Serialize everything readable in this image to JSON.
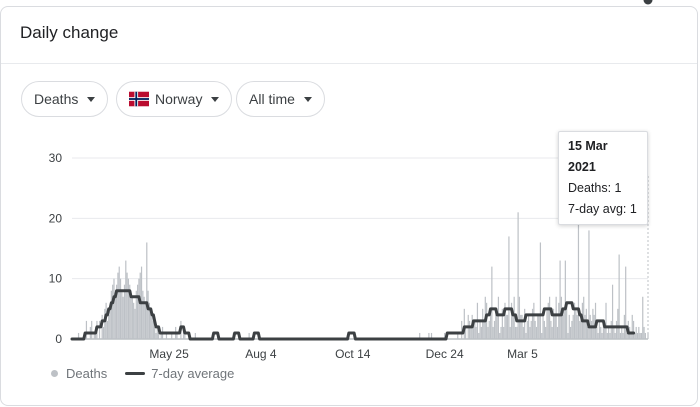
{
  "card": {
    "title": "Daily change"
  },
  "filters": {
    "metric": "Deaths",
    "region": "Norway",
    "range": "All time"
  },
  "flag_colors": {
    "red": "#ba0c2f",
    "white": "#ffffff",
    "blue": "#00205b"
  },
  "tooltip": {
    "date": "15 Mar 2021",
    "deaths_label": "Deaths: 1",
    "avg_label": "7-day avg: 1"
  },
  "legend": {
    "bars": "Deaths",
    "line": "7-day average"
  },
  "colors": {
    "bars": "#bdc1c6",
    "line": "#3c4043",
    "grid": "#e8eaed",
    "marker": "#3c4043"
  },
  "chart_data": {
    "type": "bar",
    "title": "",
    "xlabel": "",
    "ylabel": "",
    "ylim": [
      0,
      30
    ],
    "yticks": [
      0,
      10,
      20,
      30
    ],
    "xticks": [
      "May 25",
      "Aug 4",
      "Oct 14",
      "Dec 24",
      "Mar 5"
    ],
    "grid": true,
    "legend_position": "bottom-left",
    "start_date": "2020-03-12",
    "end_date": "2021-03-15",
    "series": [
      {
        "name": "Deaths",
        "kind": "bar",
        "values": [
          0,
          0,
          0,
          0,
          0,
          1,
          0,
          0,
          0,
          0,
          1,
          3,
          0,
          0,
          2,
          3,
          0,
          1,
          2,
          3,
          0,
          3,
          0,
          4,
          2,
          5,
          6,
          3,
          4,
          5,
          8,
          9,
          10,
          7,
          9,
          11,
          12,
          10,
          8,
          7,
          9,
          13,
          11,
          10,
          9,
          8,
          7,
          6,
          5,
          8,
          9,
          10,
          11,
          12,
          8,
          7,
          6,
          16,
          8,
          6,
          5,
          4,
          3,
          2,
          1,
          2,
          1,
          0,
          1,
          2,
          0,
          0,
          1,
          0,
          0,
          0,
          1,
          0,
          0,
          2,
          1,
          0,
          0,
          3,
          0,
          2,
          1,
          0,
          0,
          0,
          0,
          0,
          0,
          0,
          1,
          0,
          0,
          0,
          0,
          0,
          0,
          0,
          0,
          0,
          0,
          0,
          0,
          0,
          0,
          0,
          0,
          1,
          0,
          0,
          0,
          0,
          0,
          0,
          0,
          0,
          0,
          0,
          0,
          1,
          0,
          0,
          0,
          0,
          0,
          0,
          0,
          0,
          0,
          0,
          0,
          1,
          0,
          0,
          0,
          0,
          0,
          0,
          0,
          0,
          0,
          0,
          0,
          0,
          0,
          0,
          0,
          0,
          0,
          0,
          0,
          0,
          0,
          0,
          0,
          0,
          0,
          0,
          0,
          0,
          0,
          0,
          0,
          0,
          0,
          0,
          0,
          0,
          0,
          0,
          0,
          0,
          0,
          0,
          0,
          0,
          0,
          0,
          0,
          0,
          0,
          0,
          0,
          0,
          0,
          0,
          0,
          0,
          0,
          0,
          0,
          0,
          0,
          0,
          0,
          0,
          0,
          0,
          0,
          0,
          0,
          0,
          0,
          0,
          0,
          0,
          0,
          0,
          0,
          0,
          0,
          1,
          0,
          0,
          0,
          0,
          0,
          0,
          0,
          0,
          0,
          0,
          0,
          0,
          0,
          0,
          0,
          0,
          0,
          0,
          0,
          0,
          0,
          0,
          0,
          0,
          0,
          0,
          0,
          0,
          0,
          0,
          0,
          0,
          0,
          0,
          0,
          0,
          0,
          0,
          0,
          0,
          0,
          0,
          0,
          0,
          0,
          0,
          0,
          0,
          0,
          1,
          0,
          0,
          0,
          0,
          0,
          0,
          1,
          0,
          1,
          0,
          0,
          0,
          0,
          0,
          0,
          0,
          0,
          0,
          1,
          0,
          0,
          0,
          0,
          0,
          0,
          0,
          0,
          0,
          1,
          0,
          0,
          3,
          0,
          5,
          2,
          0,
          4,
          3,
          2,
          4,
          3,
          3,
          2,
          6,
          1,
          3,
          2,
          5,
          3,
          7,
          6,
          2,
          3,
          5,
          12,
          2,
          3,
          4,
          4,
          7,
          1,
          2,
          5,
          2,
          6,
          4,
          4,
          17,
          2,
          6,
          4,
          7,
          2,
          2,
          21,
          7,
          4,
          4,
          2,
          5,
          1,
          3,
          4,
          2,
          3,
          5,
          6,
          3,
          2,
          4,
          4,
          16,
          1,
          4,
          3,
          2,
          5,
          6,
          7,
          3,
          2,
          5,
          4,
          7,
          2,
          6,
          13,
          7,
          4,
          5,
          13,
          6,
          1,
          4,
          2,
          3,
          4,
          6,
          5,
          4,
          27,
          3,
          4,
          6,
          7,
          4,
          5,
          2,
          18,
          4,
          3,
          5,
          4,
          6,
          2,
          1,
          3,
          2,
          1,
          3,
          2,
          6,
          1,
          2,
          1,
          3,
          9,
          2,
          1,
          3,
          5,
          14,
          1,
          2,
          1,
          4,
          12,
          1,
          3,
          2,
          1,
          4,
          3,
          1,
          2,
          1,
          2,
          1,
          1,
          7,
          2,
          1,
          0,
          1
        ]
      },
      {
        "name": "7-day average",
        "kind": "line",
        "values": [
          0,
          0,
          0,
          0,
          0,
          0,
          0,
          0,
          0,
          0,
          1,
          1,
          1,
          1,
          1,
          1,
          1,
          1,
          1,
          2,
          2,
          2,
          2,
          3,
          3,
          3,
          4,
          4,
          5,
          5,
          6,
          6,
          7,
          7,
          8,
          8,
          8,
          8,
          8,
          8,
          8,
          8,
          8,
          8,
          8,
          7,
          7,
          7,
          7,
          7,
          7,
          7,
          6,
          6,
          6,
          6,
          6,
          6,
          5,
          5,
          5,
          4,
          4,
          3,
          2,
          2,
          2,
          1,
          1,
          1,
          1,
          1,
          1,
          1,
          1,
          1,
          1,
          1,
          1,
          1,
          1,
          1,
          1,
          2,
          2,
          2,
          1,
          1,
          1,
          1,
          0,
          0,
          0,
          0,
          0,
          0,
          0,
          0,
          0,
          0,
          0,
          0,
          0,
          0,
          0,
          0,
          0,
          0,
          1,
          1,
          1,
          1,
          0,
          0,
          0,
          0,
          0,
          0,
          0,
          0,
          0,
          0,
          0,
          0,
          1,
          1,
          1,
          1,
          0,
          0,
          0,
          0,
          0,
          0,
          0,
          0,
          0,
          0,
          0,
          1,
          1,
          1,
          1,
          0,
          0,
          0,
          0,
          0,
          0,
          0,
          0,
          0,
          0,
          0,
          0,
          0,
          0,
          0,
          0,
          0,
          0,
          0,
          0,
          0,
          0,
          0,
          0,
          0,
          0,
          0,
          0,
          0,
          0,
          0,
          0,
          0,
          0,
          0,
          0,
          0,
          0,
          0,
          0,
          0,
          0,
          0,
          0,
          0,
          0,
          0,
          0,
          0,
          0,
          0,
          0,
          0,
          0,
          0,
          0,
          0,
          0,
          0,
          0,
          0,
          0,
          0,
          0,
          0,
          0,
          0,
          0,
          1,
          1,
          1,
          1,
          1,
          0,
          0,
          0,
          0,
          0,
          0,
          0,
          0,
          0,
          0,
          0,
          0,
          0,
          0,
          0,
          0,
          0,
          0,
          0,
          0,
          0,
          0,
          0,
          0,
          0,
          0,
          0,
          0,
          0,
          0,
          0,
          0,
          0,
          0,
          0,
          0,
          0,
          0,
          0,
          0,
          0,
          0,
          0,
          0,
          0,
          0,
          0,
          0,
          0,
          0,
          0,
          0,
          0,
          0,
          0,
          0,
          0,
          0,
          0,
          0,
          0,
          0,
          0,
          0,
          0,
          0,
          0,
          0,
          0,
          0,
          1,
          1,
          1,
          1,
          1,
          1,
          1,
          1,
          1,
          1,
          1,
          1,
          1,
          2,
          2,
          2,
          2,
          2,
          2,
          2,
          3,
          3,
          3,
          3,
          3,
          3,
          3,
          3,
          3,
          3,
          4,
          4,
          4,
          5,
          5,
          5,
          5,
          5,
          4,
          4,
          4,
          4,
          4,
          4,
          5,
          5,
          5,
          5,
          5,
          5,
          4,
          4,
          4,
          3,
          3,
          3,
          3,
          3,
          3,
          3,
          4,
          4,
          4,
          4,
          4,
          4,
          4,
          4,
          4,
          4,
          4,
          4,
          4,
          4,
          5,
          5,
          5,
          5,
          5,
          5,
          4,
          4,
          4,
          4,
          4,
          4,
          4,
          4,
          5,
          5,
          5,
          6,
          6,
          6,
          6,
          6,
          5,
          5,
          5,
          5,
          5,
          4,
          4,
          3,
          3,
          3,
          3,
          3,
          2,
          2,
          2,
          2,
          2,
          2,
          3,
          3,
          3,
          3,
          3,
          3,
          2,
          2,
          2,
          2,
          2,
          2,
          2,
          2,
          2,
          2,
          2,
          2,
          2,
          2,
          2,
          2,
          2,
          2,
          1,
          1,
          1,
          1,
          1
        ]
      }
    ]
  }
}
